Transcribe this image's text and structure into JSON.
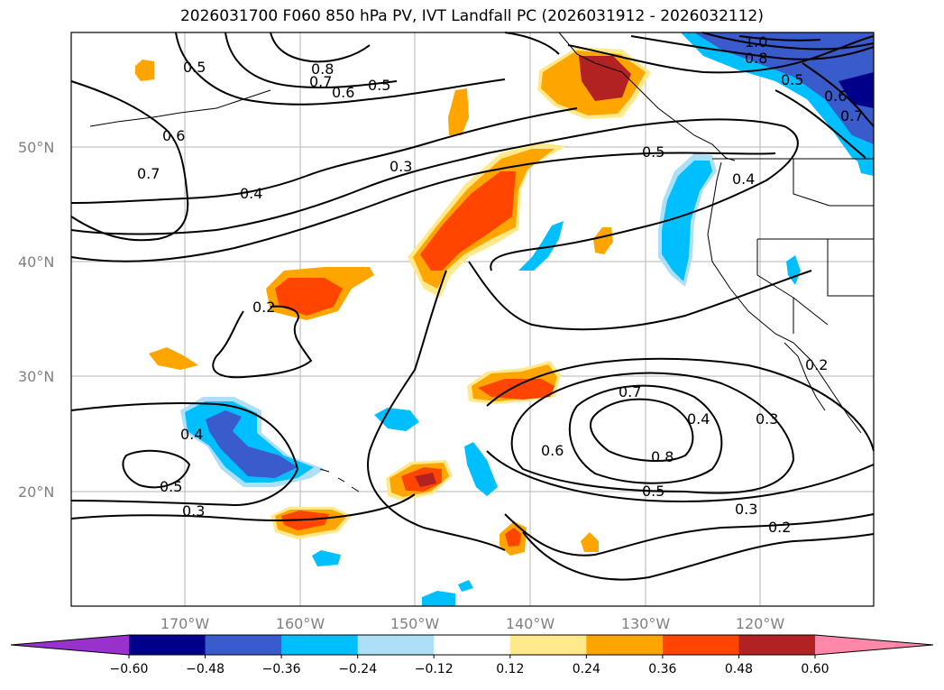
{
  "title": "2026031700 F060 850 hPa PV, IVT Landfall PC (2026031912 - 2026032112)",
  "lat_labels": [
    "50°N",
    "40°N",
    "30°N",
    "20°N"
  ],
  "lon_labels": [
    "170°W",
    "160°W",
    "150°W",
    "140°W",
    "130°W",
    "120°W"
  ],
  "contour_labels": [
    "0.5",
    "0.8",
    "0.7",
    "0.6",
    "0.5",
    "1.0",
    "0.8",
    "0.5",
    "0.6",
    "0.7",
    "0.6",
    "0.7",
    "0.3",
    "0.5",
    "0.4",
    "0.4",
    "0.2",
    "0.7",
    "0.4",
    "0.3",
    "0.6",
    "0.8",
    "0.5",
    "0.3",
    "0.2",
    "0.4",
    "0.5",
    "0.3",
    "0.2"
  ],
  "colorbar": {
    "ticks": [
      "−0.60",
      "−0.48",
      "−0.36",
      "−0.24",
      "−0.12",
      "0.12",
      "0.24",
      "0.36",
      "0.48",
      "0.60"
    ],
    "colors": [
      "#9932CC",
      "#00008B",
      "#3A5BCB",
      "#00BFFF",
      "#ADDFF8",
      "#FFFFFF",
      "#FFE98A",
      "#FFA500",
      "#FF4500",
      "#B22222",
      "#FF88AA"
    ]
  },
  "fill_colors": {
    "yellow": "#FFE98A",
    "orange": "#FFA500",
    "red_orange": "#FF4500",
    "dark_red": "#B22222",
    "light_blue": "#ADDFF8",
    "blue": "#00BFFF",
    "med_blue": "#3A5BCB",
    "navy": "#00008B"
  }
}
